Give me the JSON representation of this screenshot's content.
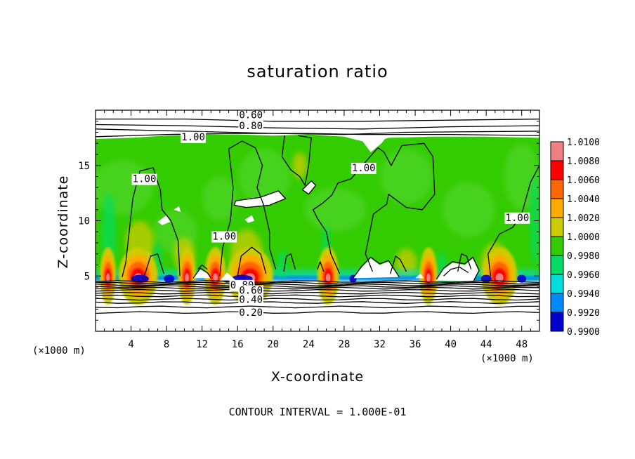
{
  "chart_data": {
    "type": "heatmap",
    "title": "saturation ratio",
    "xlabel": "X-coordinate",
    "ylabel": "Z-coordinate",
    "x_unit_label": "(×1000 m)",
    "footer": "CONTOUR INTERVAL = 1.000E-01",
    "xlim": [
      0,
      50
    ],
    "ylim": [
      0,
      20
    ],
    "x_ticks": [
      4,
      8,
      12,
      16,
      20,
      24,
      28,
      32,
      36,
      40,
      44,
      48
    ],
    "y_ticks": [
      5,
      10,
      15
    ],
    "colorbar": {
      "levels": [
        "1.0100",
        "1.0080",
        "1.0060",
        "1.0040",
        "1.0020",
        "1.0000",
        "0.9980",
        "0.9960",
        "0.9940",
        "0.9920",
        "0.9900"
      ],
      "colors": [
        "#f08080",
        "#ff0000",
        "#ff6600",
        "#ffaa00",
        "#cccc00",
        "#33cc00",
        "#00dd66",
        "#00dddd",
        "#0088ff",
        "#0000cc",
        "#5500aa"
      ]
    },
    "contour_labels": [
      {
        "text": "0.60",
        "x": 17.5,
        "z": 19.6
      },
      {
        "text": "0.80",
        "x": 17.5,
        "z": 18.6
      },
      {
        "text": "1.00",
        "x": 11.0,
        "z": 17.6
      },
      {
        "text": "1.00",
        "x": 5.5,
        "z": 13.8
      },
      {
        "text": "1.00",
        "x": 14.5,
        "z": 8.6
      },
      {
        "text": "1.00",
        "x": 30.2,
        "z": 14.8
      },
      {
        "text": "1.00",
        "x": 47.5,
        "z": 10.3
      },
      {
        "text": "0.80",
        "x": 16.5,
        "z": 4.2
      },
      {
        "text": "0.60",
        "x": 17.5,
        "z": 3.7
      },
      {
        "text": "0.40",
        "x": 17.5,
        "z": 2.9
      },
      {
        "text": "0.20",
        "x": 17.5,
        "z": 1.7
      }
    ]
  }
}
